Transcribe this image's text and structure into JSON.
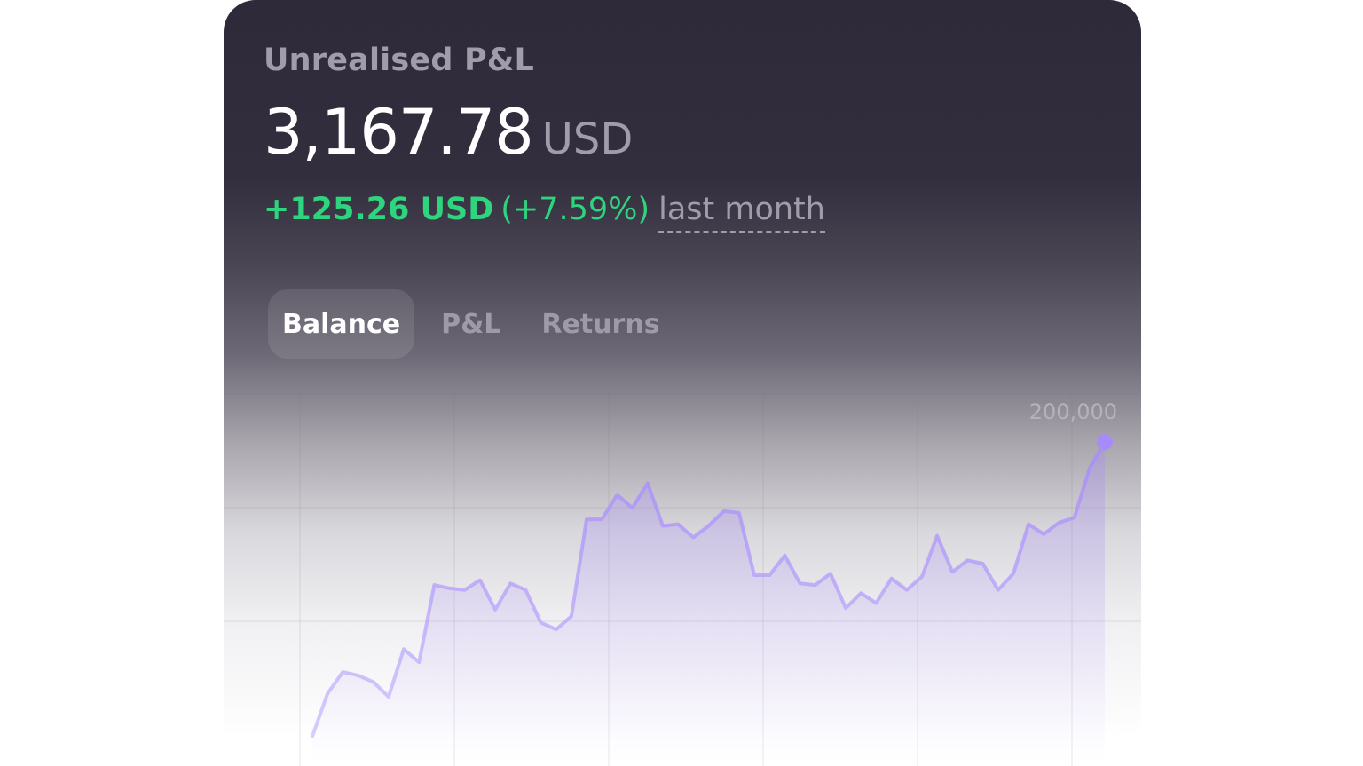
{
  "card": {
    "title": "Unrealised P&L",
    "amount": "3,167.78",
    "currency": "USD",
    "change_value": "+125.26 USD",
    "change_pct": "(+7.59%)",
    "period": "last month"
  },
  "tabs": [
    {
      "label": "Balance",
      "active": true
    },
    {
      "label": "P&L",
      "active": false
    },
    {
      "label": "Returns",
      "active": false
    }
  ],
  "colors": {
    "accent": "#a78bfa",
    "positive": "#2fd47e",
    "muted": "#a09caa"
  },
  "chart_data": {
    "type": "area",
    "title": "",
    "xlabel": "",
    "ylabel": "",
    "y_tick_labels": [
      "200,000"
    ],
    "ylim": [
      0,
      200000
    ],
    "grid": true,
    "legend": "none",
    "series": [
      {
        "values": [
          2000,
          28000,
          41000,
          39000,
          35000,
          26000,
          55000,
          47000,
          94000,
          92000,
          91000,
          97000,
          79000,
          95000,
          91000,
          71000,
          67000,
          75000,
          134000,
          134000,
          149000,
          141000,
          156000,
          130000,
          131000,
          123000,
          130000,
          139000,
          138000,
          100000,
          100000,
          112000,
          95000,
          94000,
          101000,
          80000,
          89000,
          83000,
          98000,
          91000,
          99000,
          124000,
          102000,
          109000,
          107000,
          91000,
          101000,
          131000,
          125000,
          132000,
          135000,
          165000,
          181000
        ]
      }
    ]
  }
}
